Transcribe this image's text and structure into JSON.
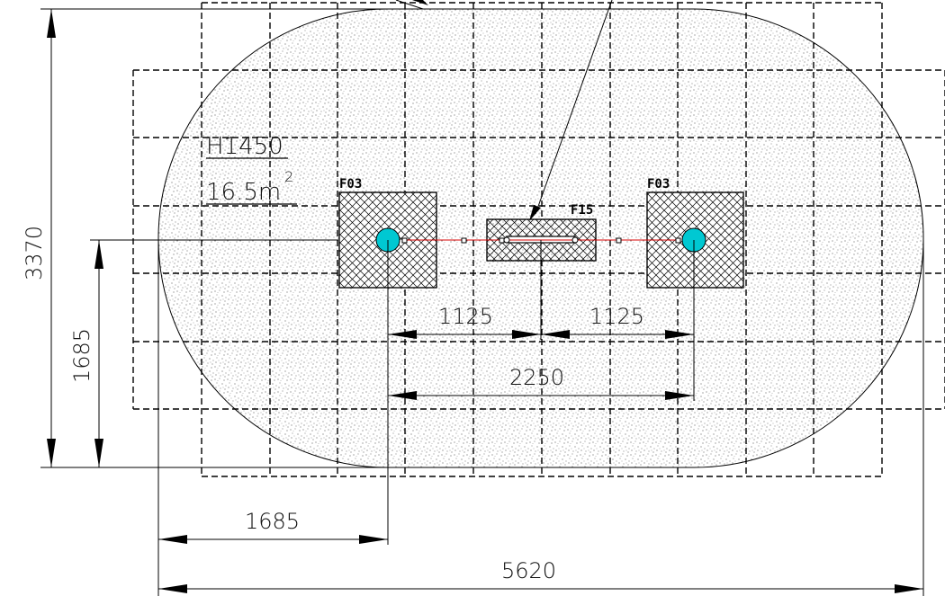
{
  "drawing": {
    "area_label": "16.5m",
    "area_superscript": "2",
    "height_label": "H1450",
    "parts": {
      "left_foundation": "F03",
      "right_foundation": "F03",
      "center_part": "F15"
    },
    "dimensions": {
      "total_width": "5620",
      "total_height": "3370",
      "half_height": "1685",
      "left_offset": "1685",
      "center_span": "2250",
      "left_half_span": "1125",
      "right_half_span": "1125"
    }
  }
}
